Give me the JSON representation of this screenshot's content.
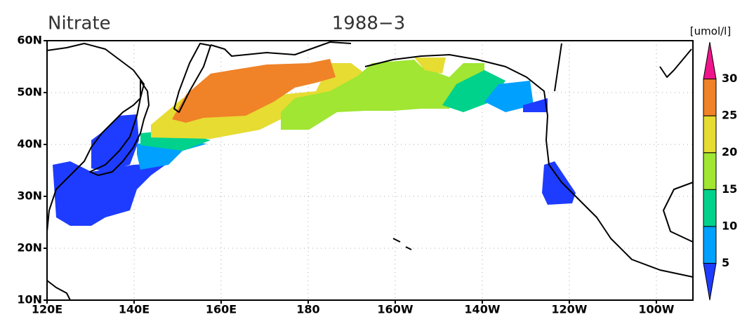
{
  "header": {
    "title": "Nitrate",
    "subtitle": "1988−3",
    "unit": "[umol/l]"
  },
  "map": {
    "lat_range": [
      10,
      60
    ],
    "lon_range": [
      120,
      268.4
    ],
    "lat_ticks": [
      {
        "value": 60,
        "label": "60N"
      },
      {
        "value": 50,
        "label": "50N"
      },
      {
        "value": 40,
        "label": "40N"
      },
      {
        "value": 30,
        "label": "30N"
      },
      {
        "value": 20,
        "label": "20N"
      },
      {
        "value": 10,
        "label": "10N"
      }
    ],
    "lon_ticks": [
      {
        "value": 120,
        "label": "120E"
      },
      {
        "value": 140,
        "label": "140E"
      },
      {
        "value": 160,
        "label": "160E"
      },
      {
        "value": 180,
        "label": "180"
      },
      {
        "value": 200,
        "label": "160W"
      },
      {
        "value": 220,
        "label": "140W"
      },
      {
        "value": 240,
        "label": "120W"
      },
      {
        "value": 260,
        "label": "100W"
      }
    ]
  },
  "colorbar": {
    "levels": [
      5,
      10,
      15,
      20,
      25,
      30
    ],
    "colors": [
      "#1e3cff",
      "#00a0ff",
      "#00d28c",
      "#a0e632",
      "#e6dc32",
      "#f08228",
      "#f0148c"
    ]
  }
}
